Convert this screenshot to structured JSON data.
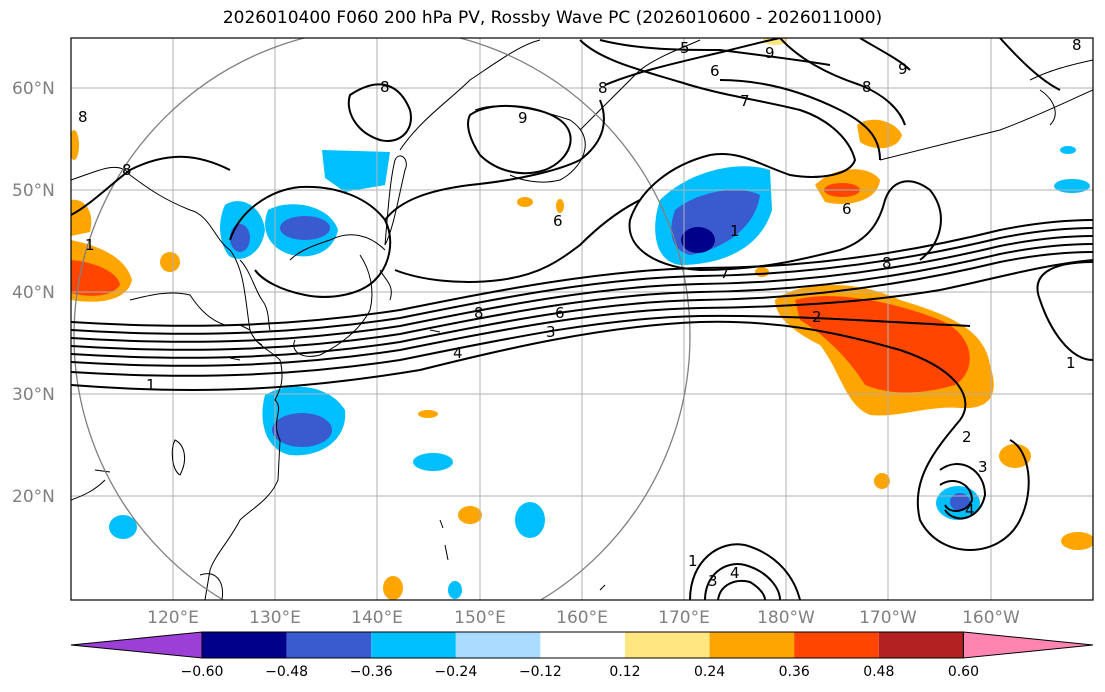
{
  "title": "2026010400 F060 200 hPa PV, Rossby Wave PC (2026010600 - 2026011000)",
  "lat_labels": [
    "60°N",
    "50°N",
    "40°N",
    "30°N",
    "20°N"
  ],
  "lon_labels": [
    "120°E",
    "130°E",
    "140°E",
    "150°E",
    "160°E",
    "170°E",
    "180°W",
    "170°W",
    "160°W"
  ],
  "colorbar": {
    "ticks": [
      "−0.60",
      "−0.48",
      "−0.36",
      "−0.24",
      "−0.12",
      "0.12",
      "0.24",
      "0.36",
      "0.48",
      "0.60"
    ],
    "colors": [
      "#9b3fd6",
      "#00008b",
      "#3a5bd0",
      "#00bfff",
      "#aadcff",
      "#ffffff",
      "#ffe680",
      "#ffa500",
      "#ff4500",
      "#b22222",
      "#ff85b0"
    ]
  },
  "contour_labels": [
    "1",
    "2",
    "3",
    "4",
    "5",
    "6",
    "7",
    "8",
    "9"
  ],
  "contour_label_texts": [
    "5",
    "6",
    "7",
    "8",
    "9",
    "8",
    "9",
    "6",
    "8",
    "7",
    "1",
    "6",
    "4",
    "3",
    "1",
    "2",
    "3",
    "2",
    "1",
    "8",
    "6",
    "3",
    "4",
    "1",
    "8",
    "8",
    "8",
    "1",
    "4",
    "9",
    "8"
  ]
}
